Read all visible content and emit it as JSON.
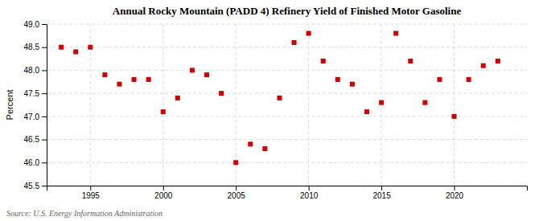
{
  "chart_data": {
    "type": "scatter",
    "title": "Annual Rocky Mountain (PADD 4) Refinery Yield of Finished Motor Gasoline",
    "ylabel": "Percent",
    "source": "Source: U.S. Energy Information Administration",
    "x": [
      1993,
      1994,
      1995,
      1996,
      1997,
      1998,
      1999,
      2000,
      2001,
      2002,
      2003,
      2004,
      2005,
      2006,
      2007,
      2008,
      2009,
      2010,
      2011,
      2012,
      2013,
      2014,
      2015,
      2016,
      2017,
      2018,
      2019,
      2020,
      2021,
      2022,
      2023
    ],
    "values": [
      48.5,
      48.4,
      48.5,
      47.9,
      47.7,
      47.8,
      47.8,
      47.1,
      47.4,
      48.0,
      47.9,
      47.5,
      46.0,
      46.4,
      46.3,
      47.4,
      48.6,
      48.8,
      48.2,
      47.8,
      47.7,
      47.1,
      47.3,
      48.8,
      48.2,
      47.3,
      47.8,
      47.0,
      47.8,
      48.1,
      48.2
    ],
    "color": "#cc0000",
    "marker": "square",
    "xlim": [
      1992.0,
      2025.0
    ],
    "xticks": [
      1995,
      2000,
      2005,
      2010,
      2015,
      2020
    ],
    "ylim": [
      45.5,
      49.0
    ],
    "yticks": [
      45.5,
      {
        "value": 46.0,
        "label": "46.0"
      },
      46.5,
      {
        "value": 47.0,
        "label": "47.0"
      },
      47.5,
      {
        "value": 48.0,
        "label": "48.0"
      },
      48.5,
      {
        "value": 49.0,
        "label": "49.0"
      }
    ],
    "grid": true
  }
}
